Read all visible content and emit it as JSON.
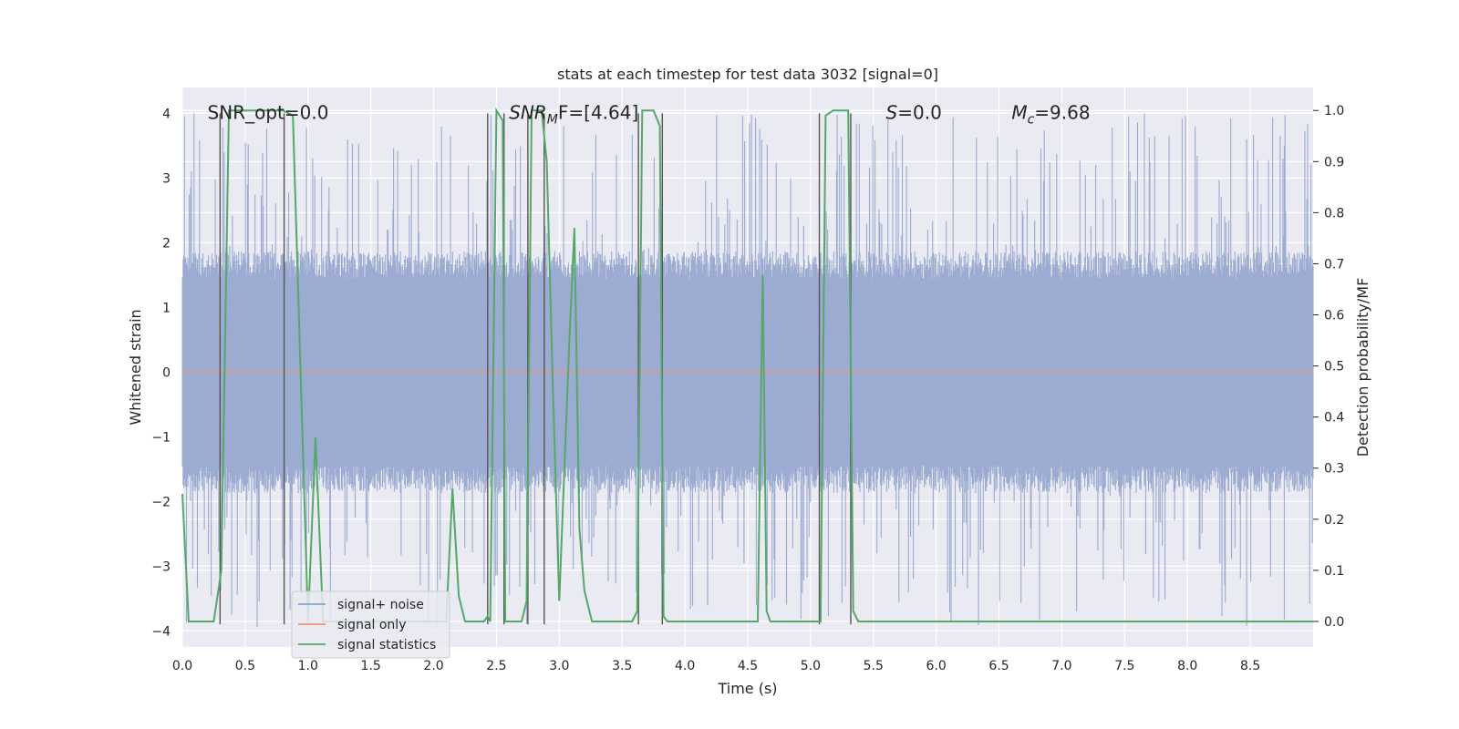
{
  "chart_data": {
    "type": "line",
    "title": "stats at each timestep for test data 3032 [signal=0]",
    "xlabel": "Time (s)",
    "ylabel": "Whitened strain",
    "ylabel_right": "Detection probability/MF",
    "xlim": [
      0,
      9.0
    ],
    "ylim": [
      -4.25,
      4.4
    ],
    "ylim_right": [
      -0.05,
      1.045
    ],
    "x_ticks": [
      "0.0",
      "0.5",
      "1.0",
      "1.5",
      "2.0",
      "2.5",
      "3.0",
      "3.5",
      "4.0",
      "4.5",
      "5.0",
      "5.5",
      "6.0",
      "6.5",
      "7.0",
      "7.5",
      "8.0",
      "8.5"
    ],
    "y_ticks": [
      "4",
      "3",
      "2",
      "1",
      "0",
      "−1",
      "−2",
      "−3",
      "−4"
    ],
    "y_ticks_right": [
      "1.0",
      "0.9",
      "0.8",
      "0.7",
      "0.6",
      "0.5",
      "0.4",
      "0.3",
      "0.2",
      "0.1",
      "0.0"
    ],
    "grid": true,
    "legend_position": "lower-left",
    "annotations": [
      {
        "text": "SNR_opt=0.0",
        "x": 0.2,
        "y": 4.0
      },
      {
        "text": "F=[4.64]",
        "prefix": "SNR",
        "sub": "M",
        "x": 2.6,
        "y": 4.0
      },
      {
        "text": "=0.0",
        "prefix": "S",
        "sub": "",
        "x": 5.6,
        "y": 4.0
      },
      {
        "text": "=9.68",
        "prefix": "M",
        "sub": "c",
        "x": 6.6,
        "y": 4.0
      }
    ],
    "series": [
      {
        "name": "signal+ noise",
        "color": "#8da0cb",
        "kind": "noise",
        "typical_abs": 1.7,
        "peak_abs": 4.0
      },
      {
        "name": "signal only",
        "color": "#e9967a",
        "kind": "flat",
        "value": 0.0
      },
      {
        "name": "signal statistics",
        "color": "#55a868",
        "axis": "right",
        "x": [
          0.0,
          0.05,
          0.25,
          0.31,
          0.37,
          0.41,
          0.55,
          0.75,
          0.8,
          0.88,
          1.0,
          1.06,
          1.12,
          1.2,
          1.3,
          1.45,
          1.6,
          1.75,
          1.9,
          2.0,
          2.05,
          2.1,
          2.15,
          2.2,
          2.25,
          2.35,
          2.4,
          2.43,
          2.45,
          2.5,
          2.55,
          2.57,
          2.6,
          2.65,
          2.7,
          2.74,
          2.78,
          2.82,
          2.86,
          2.9,
          2.95,
          3.0,
          3.08,
          3.12,
          3.16,
          3.2,
          3.26,
          3.3,
          3.4,
          3.5,
          3.58,
          3.62,
          3.66,
          3.7,
          3.75,
          3.8,
          3.83,
          3.86,
          3.9,
          3.95,
          4.05,
          4.15,
          4.3,
          4.45,
          4.55,
          4.58,
          4.62,
          4.65,
          4.68,
          4.72,
          4.8,
          4.9,
          5.0,
          5.06,
          5.08,
          5.12,
          5.18,
          5.24,
          5.3,
          5.34,
          5.38,
          5.42,
          5.5,
          6.0,
          7.0,
          8.0,
          9.0
        ],
        "y": [
          0.25,
          0.0,
          0.0,
          0.1,
          1.0,
          1.0,
          1.0,
          1.0,
          1.0,
          0.99,
          0.0,
          0.36,
          0.0,
          0.0,
          0.0,
          0.0,
          0.0,
          0.0,
          0.0,
          0.0,
          0.0,
          0.0,
          0.26,
          0.05,
          0.0,
          0.0,
          0.0,
          0.01,
          0.0,
          1.0,
          0.98,
          0.0,
          0.0,
          0.0,
          0.0,
          0.04,
          1.0,
          1.0,
          1.0,
          0.9,
          0.45,
          0.04,
          0.55,
          0.77,
          0.18,
          0.06,
          0.0,
          0.0,
          0.0,
          0.0,
          0.0,
          0.02,
          1.0,
          1.0,
          1.0,
          0.97,
          0.01,
          0.0,
          0.0,
          0.0,
          0.0,
          0.0,
          0.0,
          0.0,
          0.0,
          0.0,
          0.68,
          0.02,
          0.0,
          0.0,
          0.0,
          0.0,
          0.0,
          0.0,
          0.0,
          0.99,
          1.0,
          1.0,
          1.0,
          0.02,
          0.0,
          0.0,
          0.0,
          0.0,
          0.0,
          0.0,
          0.0
        ]
      }
    ],
    "vertical_lines": [
      0.3,
      0.81,
      2.43,
      2.56,
      2.75,
      2.88,
      3.63,
      3.82,
      5.07,
      5.32
    ]
  }
}
